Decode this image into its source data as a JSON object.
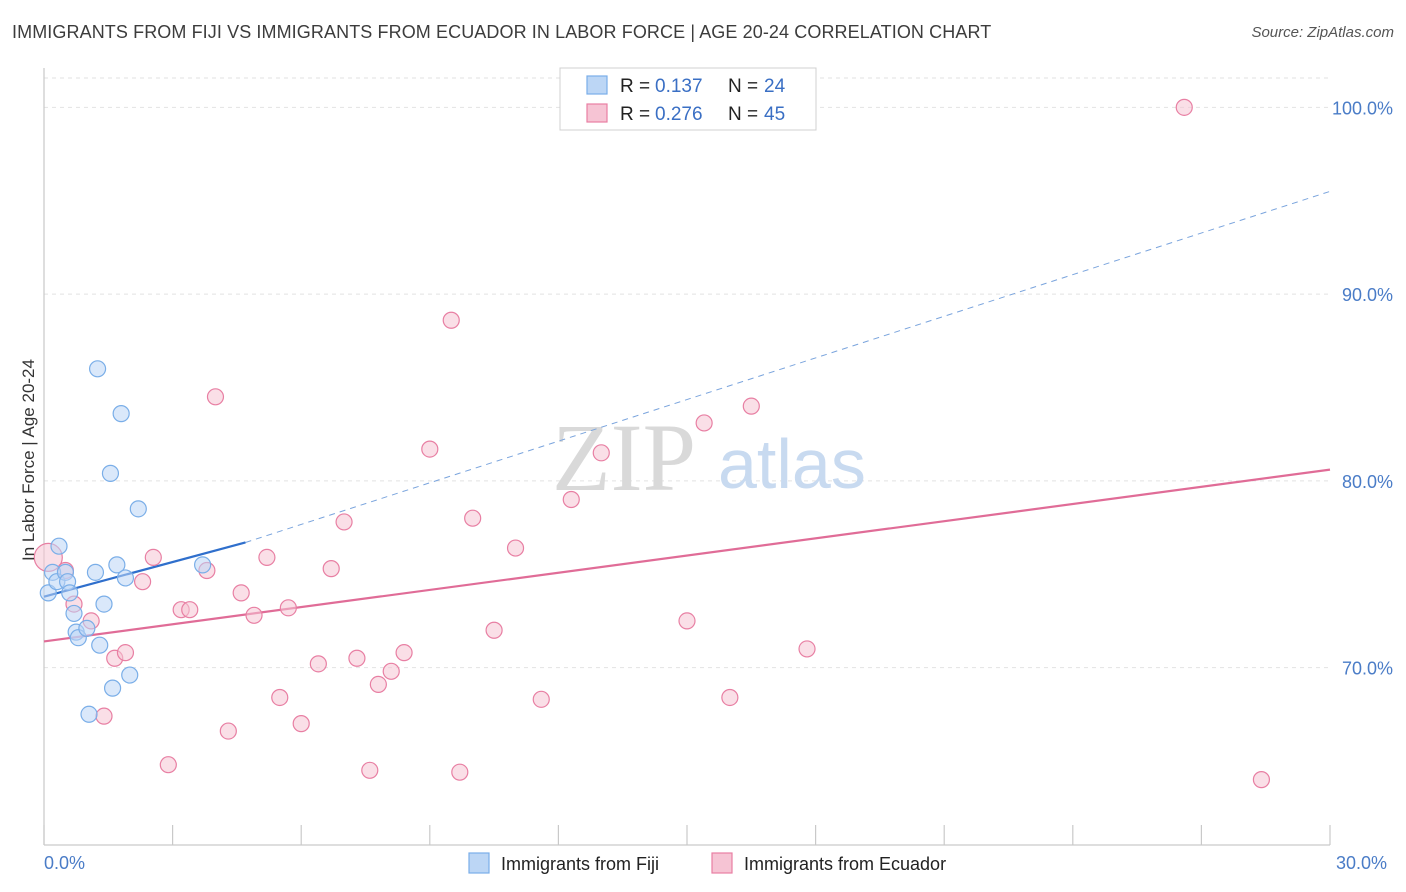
{
  "header": {
    "title": "IMMIGRANTS FROM FIJI VS IMMIGRANTS FROM ECUADOR IN LABOR FORCE | AGE 20-24 CORRELATION CHART",
    "source": "Source: ZipAtlas.com"
  },
  "watermark": {
    "zip": "ZIP",
    "atlas": "atlas"
  },
  "legend": {
    "fiji": {
      "r_label": "R =",
      "r_value": "0.137",
      "n_label": "N =",
      "n_value": "24"
    },
    "ecuador": {
      "r_label": "R =",
      "r_value": "0.276",
      "n_label": "N =",
      "n_value": "45"
    }
  },
  "chart_data": {
    "type": "scatter",
    "title": "IMMIGRANTS FROM FIJI VS IMMIGRANTS FROM ECUADOR IN LABOR FORCE | AGE 20-24 CORRELATION CHART",
    "xlabel": "",
    "ylabel": "In Labor Force | Age 20-24",
    "xlim": [
      0,
      30
    ],
    "ylim": [
      60.5,
      102
    ],
    "x_tick_labels": [
      "0.0%",
      "30.0%"
    ],
    "y_ticks": [
      70,
      80,
      90,
      100
    ],
    "y_tick_labels": [
      "70.0%",
      "80.0%",
      "90.0%",
      "100.0%"
    ],
    "grid": true,
    "legend_position": "top-center",
    "series": [
      {
        "name": "Immigrants from Fiji",
        "color": "#7aaee8",
        "fill": "#bcd6f5",
        "r": 0.137,
        "n": 24,
        "points": [
          [
            0.1,
            74.0
          ],
          [
            0.2,
            75.1
          ],
          [
            0.3,
            74.6
          ],
          [
            0.35,
            76.5
          ],
          [
            0.5,
            75.1
          ],
          [
            0.55,
            74.6
          ],
          [
            0.6,
            74.0
          ],
          [
            0.7,
            72.9
          ],
          [
            0.75,
            71.9
          ],
          [
            0.8,
            71.6
          ],
          [
            1.0,
            72.1
          ],
          [
            1.05,
            67.5
          ],
          [
            1.2,
            75.1
          ],
          [
            1.25,
            86.0
          ],
          [
            1.3,
            71.2
          ],
          [
            1.4,
            73.4
          ],
          [
            1.55,
            80.4
          ],
          [
            1.6,
            68.9
          ],
          [
            1.7,
            75.5
          ],
          [
            1.8,
            83.6
          ],
          [
            1.9,
            74.8
          ],
          [
            2.0,
            69.6
          ],
          [
            2.2,
            78.5
          ],
          [
            3.7,
            75.5
          ]
        ],
        "trend": {
          "x": [
            0,
            4.7
          ],
          "y": [
            73.8,
            76.7
          ],
          "extended_to": [
            30,
            95.5
          ],
          "style": "solid then dashed"
        }
      },
      {
        "name": "Immigrants from Ecuador",
        "color": "#e87fa3",
        "fill": "#f6c4d4",
        "r": 0.276,
        "n": 45,
        "points": [
          [
            0.1,
            75.9
          ],
          [
            0.5,
            75.2
          ],
          [
            0.7,
            73.4
          ],
          [
            1.1,
            72.5
          ],
          [
            1.4,
            67.4
          ],
          [
            1.65,
            70.5
          ],
          [
            1.9,
            70.8
          ],
          [
            2.3,
            74.6
          ],
          [
            2.55,
            75.9
          ],
          [
            2.9,
            64.8
          ],
          [
            3.2,
            73.1
          ],
          [
            3.4,
            73.1
          ],
          [
            3.8,
            75.2
          ],
          [
            4.0,
            84.5
          ],
          [
            4.3,
            66.6
          ],
          [
            4.6,
            74.0
          ],
          [
            4.9,
            72.8
          ],
          [
            5.2,
            75.9
          ],
          [
            5.5,
            68.4
          ],
          [
            5.7,
            73.2
          ],
          [
            6.0,
            67.0
          ],
          [
            6.4,
            70.2
          ],
          [
            6.7,
            75.3
          ],
          [
            7.0,
            77.8
          ],
          [
            7.3,
            70.5
          ],
          [
            7.6,
            64.5
          ],
          [
            7.8,
            69.1
          ],
          [
            8.1,
            69.8
          ],
          [
            8.4,
            70.8
          ],
          [
            9.0,
            81.7
          ],
          [
            9.5,
            88.6
          ],
          [
            9.7,
            64.4
          ],
          [
            10.0,
            78.0
          ],
          [
            10.5,
            72.0
          ],
          [
            11.0,
            76.4
          ],
          [
            11.6,
            68.3
          ],
          [
            12.3,
            79.0
          ],
          [
            13.0,
            81.5
          ],
          [
            15.0,
            72.5
          ],
          [
            15.4,
            83.1
          ],
          [
            16.0,
            68.4
          ],
          [
            16.5,
            84.0
          ],
          [
            17.8,
            71.0
          ],
          [
            26.6,
            100.0
          ],
          [
            28.4,
            64.0
          ]
        ],
        "trend": {
          "x": [
            0,
            30
          ],
          "y": [
            71.4,
            80.6
          ],
          "style": "solid"
        }
      }
    ]
  },
  "axes": {
    "x_min_label": "0.0%",
    "x_max_label": "30.0%",
    "y_label": "In Labor Force | Age 20-24",
    "y_ticks": [
      "100.0%",
      "90.0%",
      "80.0%",
      "70.0%"
    ]
  },
  "bottom_legend": {
    "fiji": "Immigrants from Fiji",
    "ecuador": "Immigrants from Ecuador"
  }
}
